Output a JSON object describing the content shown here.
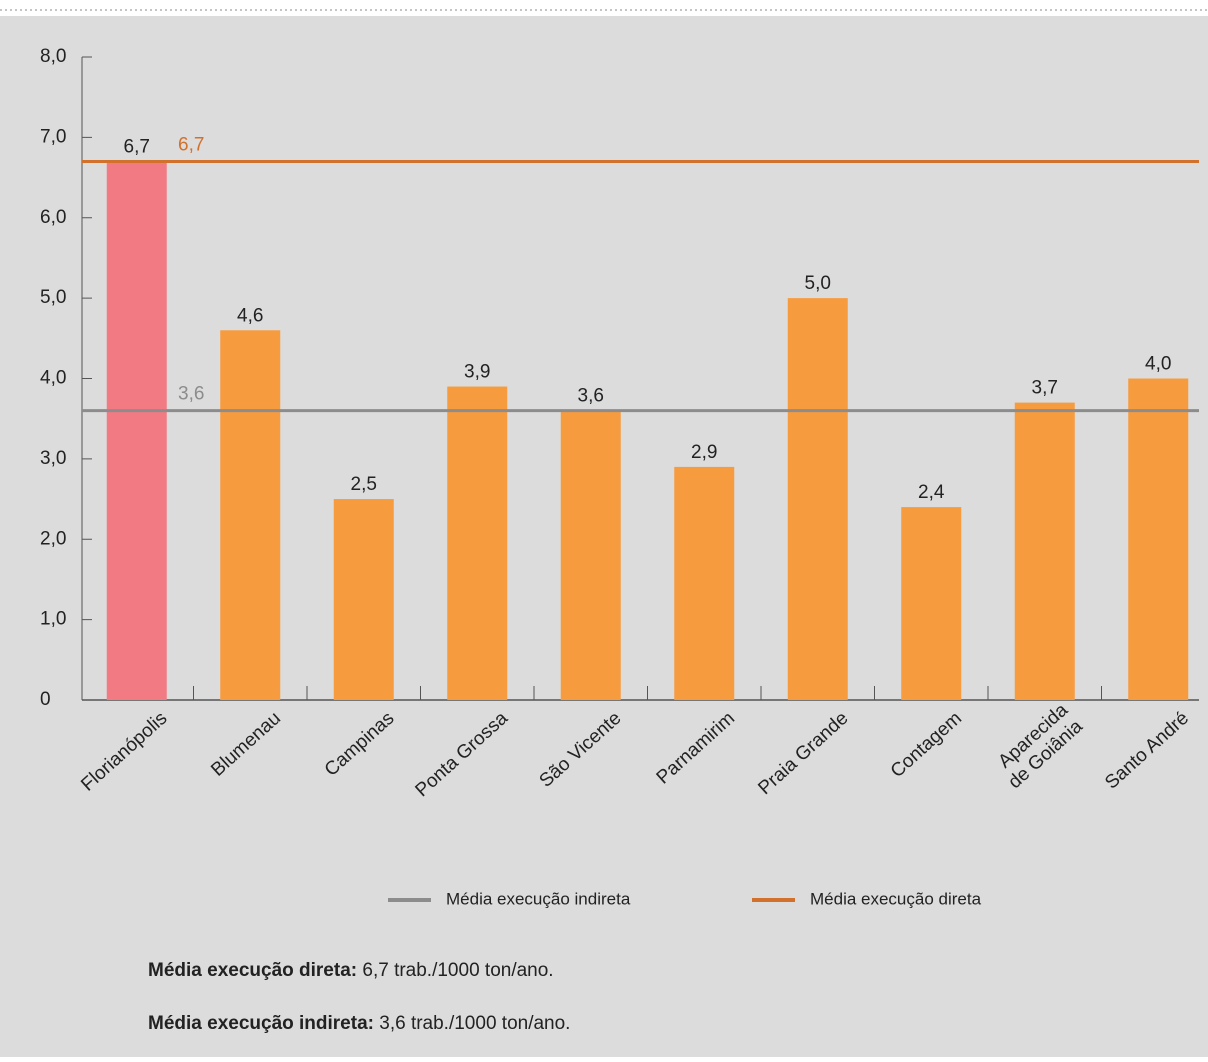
{
  "chart_data": {
    "type": "bar",
    "categories": [
      "Florianópolis",
      "Blumenau",
      "Campinas",
      "Ponta Grossa",
      "São Vicente",
      "Parnamirim",
      "Praia Grande",
      "Contagem",
      "Aparecida de Goiânia",
      "Santo André"
    ],
    "values": [
      6.7,
      4.6,
      2.5,
      3.9,
      3.6,
      2.9,
      5.0,
      2.4,
      3.7,
      4.0
    ],
    "value_labels": [
      "6,7",
      "4,6",
      "2,5",
      "3,9",
      "3,6",
      "2,9",
      "5,0",
      "2,4",
      "3,7",
      "4,0"
    ],
    "colors": [
      "#f27a83",
      "#f79b3f",
      "#f79b3f",
      "#f79b3f",
      "#f79b3f",
      "#f79b3f",
      "#f79b3f",
      "#f79b3f",
      "#f79b3f",
      "#f79b3f"
    ],
    "ylim": [
      0,
      8
    ],
    "yticks": [
      0,
      {
        "value": 1,
        "label": "1,0"
      },
      {
        "value": 2,
        "label": "2,0"
      },
      {
        "value": 3,
        "label": "3,0"
      },
      {
        "value": 4,
        "label": "4,0"
      },
      {
        "value": 5,
        "label": "5,0"
      },
      {
        "value": 6,
        "label": "6,0"
      },
      {
        "value": 7,
        "label": "7,0"
      },
      {
        "value": 8,
        "label": "8,0"
      }
    ],
    "reference_lines": [
      {
        "name": "Média execução indireta",
        "value": 3.6,
        "value_label": "3,6",
        "color": "#8c8c8c"
      },
      {
        "name": "Média execução direta",
        "value": 6.7,
        "value_label": "6,7",
        "color": "#d2712c"
      }
    ],
    "notes": [
      {
        "label": "Média execução direta:",
        "text": "6,7 trab./1000 ton/ano."
      },
      {
        "label": "Média execução indireta:",
        "text": "3,6 trab./1000 ton/ano."
      }
    ]
  }
}
